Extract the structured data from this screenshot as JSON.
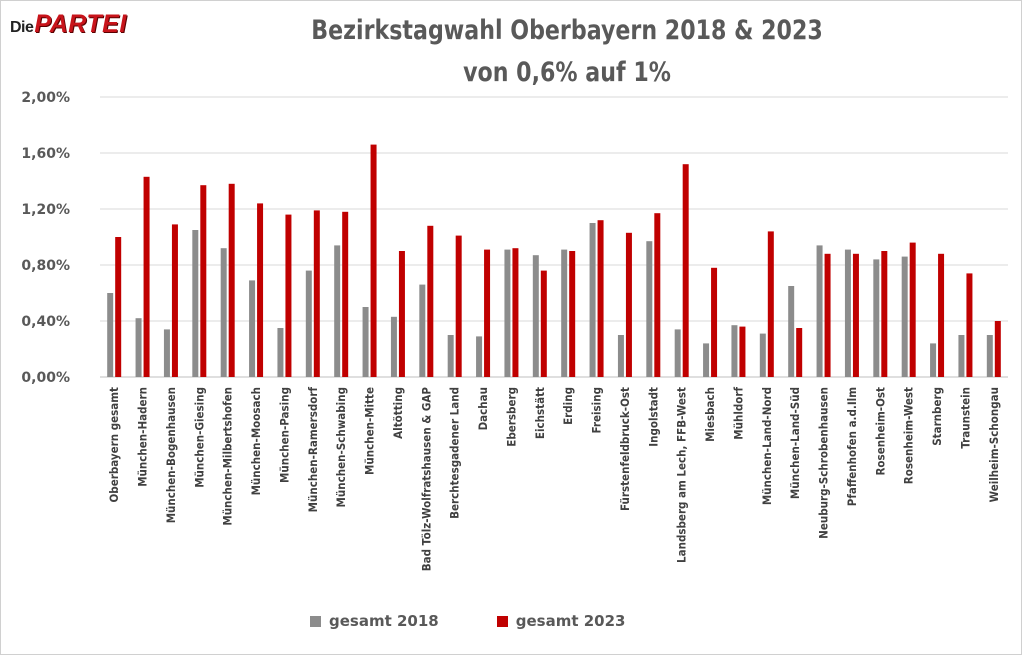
{
  "logo": {
    "die": "Die",
    "partei": "PARTEI"
  },
  "title_line1": "Bezirkstagwahl Oberbayern 2018 & 2023",
  "title_line2": "von 0,6% auf 1%",
  "colors": {
    "gesamt_2018": "#8c8c8c",
    "gesamt_2023": "#c00000",
    "grid": "#d9d9d9",
    "axis": "#bfbfbf"
  },
  "chart_data": {
    "type": "bar",
    "title": "Bezirkstagwahl Oberbayern 2018 & 2023 von 0,6% auf 1%",
    "ylim": [
      0,
      2.0
    ],
    "y_ticks": [
      "0,00%",
      "0,40%",
      "0,80%",
      "1,20%",
      "1,60%",
      "2,00%"
    ],
    "y_tick_values": [
      0,
      0.4,
      0.8,
      1.2,
      1.6,
      2.0
    ],
    "grid": true,
    "legend_position": "bottom",
    "categories": [
      "Oberbayern gesamt",
      "München-Hadern",
      "München-Bogenhausen",
      "München-Giesing",
      "München-Milbertshofen",
      "München-Moosach",
      "München-Pasing",
      "München-Ramersdorf",
      "München-Schwabing",
      "München-Mitte",
      "Altötting",
      "Bad Tölz-Wolfratshausen & GAP",
      "Berchtesgadener Land",
      "Dachau",
      "Ebersberg",
      "Eichstätt",
      "Erding",
      "Freising",
      "Fürstenfeldbruck-Ost",
      "Ingolstadt",
      "Landsberg am Lech, FFB-West",
      "Miesbach",
      "Mühldorf",
      "München-Land-Nord",
      "München-Land-Süd",
      "Neuburg-Schrobenhausen",
      "Pfaffenhofen a.d.Ilm",
      "Rosenheim-Ost",
      "Rosenheim-West",
      "Starnberg",
      "Traunstein",
      "Weilheim-Schongau"
    ],
    "series": [
      {
        "name": "gesamt 2018",
        "values": [
          0.6,
          0.42,
          0.34,
          1.05,
          0.92,
          0.69,
          0.35,
          0.76,
          0.94,
          0.5,
          0.43,
          0.66,
          0.3,
          0.29,
          0.91,
          0.87,
          0.91,
          1.1,
          0.3,
          0.97,
          0.34,
          0.24,
          0.37,
          0.31,
          0.65,
          0.94,
          0.91,
          0.84,
          0.86,
          0.24,
          0.3,
          0.3
        ]
      },
      {
        "name": "gesamt 2023",
        "values": [
          1.0,
          1.43,
          1.09,
          1.37,
          1.38,
          1.24,
          1.16,
          1.19,
          1.18,
          1.66,
          0.9,
          1.08,
          1.01,
          0.91,
          0.92,
          0.76,
          0.9,
          1.12,
          1.03,
          1.17,
          1.52,
          0.78,
          0.36,
          1.04,
          0.35,
          0.88,
          0.88,
          0.9,
          0.96,
          0.88,
          0.74,
          0.4
        ]
      }
    ]
  }
}
